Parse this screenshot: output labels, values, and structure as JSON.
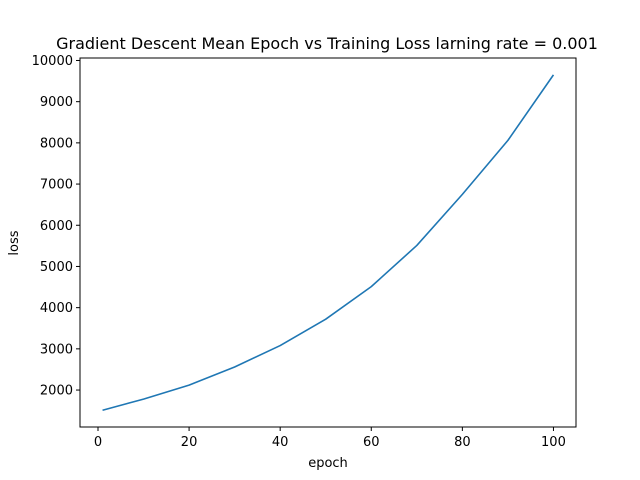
{
  "chart_data": {
    "type": "line",
    "title": "Gradient Descent Mean Epoch vs Training Loss larning rate = 0.001",
    "xlabel": "epoch",
    "ylabel": "loss",
    "xlim": [
      -3.95,
      104.95
    ],
    "ylim": [
      1103,
      10060
    ],
    "xticks": [
      0,
      20,
      40,
      60,
      80,
      100
    ],
    "yticks": [
      2000,
      3000,
      4000,
      5000,
      6000,
      7000,
      8000,
      9000,
      10000
    ],
    "grid": false,
    "series": [
      {
        "color": "#1f77b4",
        "x": [
          1,
          10,
          20,
          30,
          40,
          50,
          60,
          70,
          80,
          90,
          100
        ],
        "y": [
          1510,
          1780,
          2120,
          2560,
          3080,
          3720,
          4510,
          5510,
          6750,
          8060,
          9650
        ]
      }
    ]
  }
}
